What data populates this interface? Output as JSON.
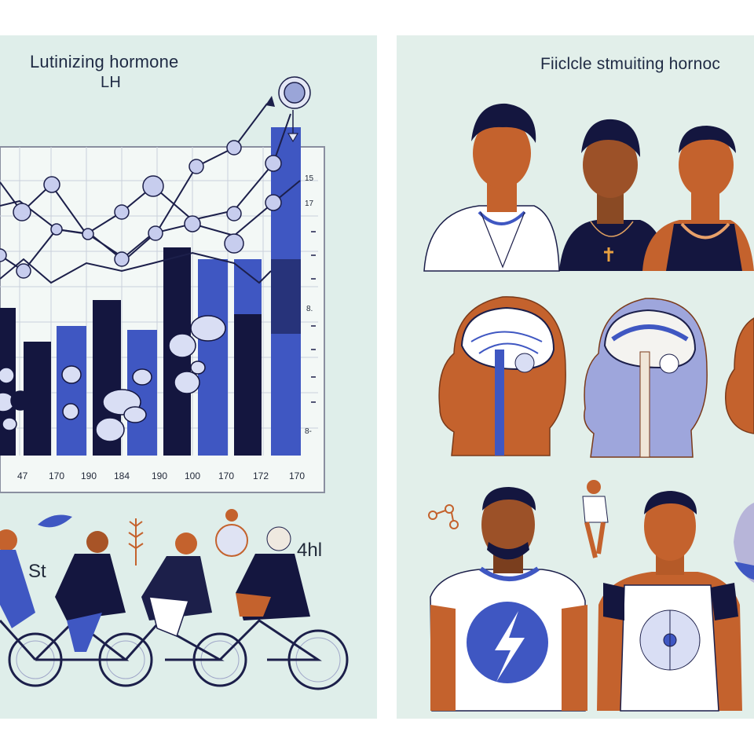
{
  "left_panel": {
    "title_line1": "Lutinizing hormone",
    "title_line2": "LH",
    "x_tick_labels": [
      "47",
      "170",
      "190",
      "184",
      "190",
      "100",
      "170",
      "172",
      "170"
    ],
    "y_tick_labels": [
      "15",
      "17",
      "8.",
      "8-"
    ],
    "cyclist_label_left": "St",
    "cyclist_label_right": "4hl"
  },
  "right_panel": {
    "title": "Fiiclcle stmuiting hornoc"
  },
  "colors": {
    "background": "#dfeeea",
    "bar_blue": "#3f57c2",
    "bar_navy": "#14163f",
    "line": "#1c1f4a",
    "skin_orange": "#c4622d"
  },
  "icons": [
    "arrow-up-right-icon",
    "lightning-bolt-icon",
    "leaf-icon",
    "cross-pendant-icon"
  ]
}
